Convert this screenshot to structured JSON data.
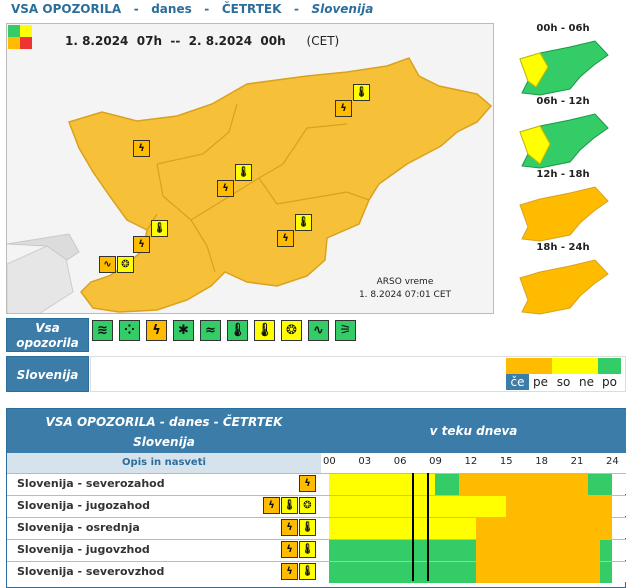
{
  "header": {
    "title": "VSA OPOZORILA",
    "sep1": "-",
    "day_word": "danes",
    "sep2": "-",
    "weekday": "ČETRTEK",
    "sep3": "-",
    "region": "Slovenija"
  },
  "map": {
    "period": "1. 8.2024  07h  --  2. 8.2024  00h",
    "timezone": "(CET)",
    "credit": "ARSO vreme",
    "issued": "1. 8.2024  07:01 CET",
    "level_colors": {
      "green": "#33cc66",
      "yellow": "#ffff00",
      "orange": "#ffbb00",
      "red": "#ee3333"
    }
  },
  "mini_maps": [
    {
      "label": "00h - 06h",
      "colors": [
        "#33cc66",
        "#ffff00"
      ]
    },
    {
      "label": "06h - 12h",
      "colors": [
        "#33cc66",
        "#ffff00"
      ]
    },
    {
      "label": "12h - 18h",
      "colors": [
        "#ffbb00"
      ]
    },
    {
      "label": "18h - 24h",
      "colors": [
        "#ffbb00"
      ]
    }
  ],
  "types": {
    "title": "Vsa opozorila",
    "items": [
      {
        "name": "wind",
        "glyph": "≋",
        "color": "#33cc66"
      },
      {
        "name": "rain",
        "glyph": "⁘",
        "color": "#33cc66"
      },
      {
        "name": "thunderstorm",
        "glyph": "ϟ",
        "color": "#ffbb00"
      },
      {
        "name": "snow",
        "glyph": "✱",
        "color": "#33cc66"
      },
      {
        "name": "fog",
        "glyph": "≈",
        "color": "#33cc66"
      },
      {
        "name": "temperature-low",
        "glyph": "🌡",
        "color": "#33cc66"
      },
      {
        "name": "temperature-high",
        "glyph": "🌡",
        "color": "#ffff00"
      },
      {
        "name": "fire",
        "glyph": "❂",
        "color": "#ffff00"
      },
      {
        "name": "coastal",
        "glyph": "∿",
        "color": "#33cc66"
      },
      {
        "name": "avalanche",
        "glyph": "⚞",
        "color": "#33cc66"
      }
    ]
  },
  "slovenija_row": {
    "label": "Slovenija",
    "levels": [
      {
        "label": "če",
        "color": "#ffbb00",
        "selected": true
      },
      {
        "label": "pe",
        "color": "#ffbb00",
        "selected": false
      },
      {
        "label": "so",
        "color": "#ffff00",
        "selected": false
      },
      {
        "label": "ne",
        "color": "#ffff00",
        "selected": false
      },
      {
        "label": "po",
        "color": "#33cc66",
        "selected": false
      }
    ]
  },
  "table": {
    "title": "VSA OPOZORILA - danes - ČETRTEK",
    "subtitle": "Slovenija",
    "column_header": "v teku dneva",
    "desc_header": "Opis in nasveti",
    "hours": [
      "00",
      "03",
      "06",
      "09",
      "12",
      "15",
      "18",
      "21",
      "24"
    ],
    "current_hour": 7.5,
    "rows": [
      {
        "name": "Slovenija - severozahod",
        "icons": [
          "ϟ"
        ],
        "icon_colors": [
          "#ffbb00"
        ],
        "segments": [
          {
            "from": 0,
            "to": 9,
            "c": "#ffff00"
          },
          {
            "from": 9,
            "to": 11,
            "c": "#33cc66"
          },
          {
            "from": 11,
            "to": 22,
            "c": "#ffbb00"
          },
          {
            "from": 22,
            "to": 24,
            "c": "#33cc66"
          }
        ]
      },
      {
        "name": "Slovenija - jugozahod",
        "icons": [
          "ϟ",
          "🌡",
          "❂"
        ],
        "icon_colors": [
          "#ffbb00",
          "#ffff00",
          "#ffff00"
        ],
        "segments": [
          {
            "from": 0,
            "to": 15,
            "c": "#ffff00"
          },
          {
            "from": 15,
            "to": 24,
            "c": "#ffbb00"
          }
        ]
      },
      {
        "name": "Slovenija - osrednja",
        "icons": [
          "ϟ",
          "🌡"
        ],
        "icon_colors": [
          "#ffbb00",
          "#ffff00"
        ],
        "segments": [
          {
            "from": 0,
            "to": 12.5,
            "c": "#ffff00"
          },
          {
            "from": 12.5,
            "to": 13.5,
            "c": "#ffbb00"
          },
          {
            "from": 13.5,
            "to": 24,
            "c": "#ffbb00"
          }
        ]
      },
      {
        "name": "Slovenija - jugovzhod",
        "icons": [
          "ϟ",
          "🌡"
        ],
        "icon_colors": [
          "#ffbb00",
          "#ffff00"
        ],
        "segments": [
          {
            "from": 0,
            "to": 12.5,
            "c": "#33cc66"
          },
          {
            "from": 12.5,
            "to": 13.5,
            "c": "#ffbb00"
          },
          {
            "from": 13.5,
            "to": 23,
            "c": "#ffbb00"
          },
          {
            "from": 23,
            "to": 24,
            "c": "#33cc66"
          }
        ]
      },
      {
        "name": "Slovenija - severovzhod",
        "icons": [
          "ϟ",
          "🌡"
        ],
        "icon_colors": [
          "#ffbb00",
          "#ffff00"
        ],
        "segments": [
          {
            "from": 0,
            "to": 12.5,
            "c": "#33cc66"
          },
          {
            "from": 12.5,
            "to": 13.5,
            "c": "#ffbb00"
          },
          {
            "from": 13.5,
            "to": 23,
            "c": "#ffbb00"
          },
          {
            "from": 23,
            "to": 24,
            "c": "#33cc66"
          }
        ]
      }
    ]
  }
}
